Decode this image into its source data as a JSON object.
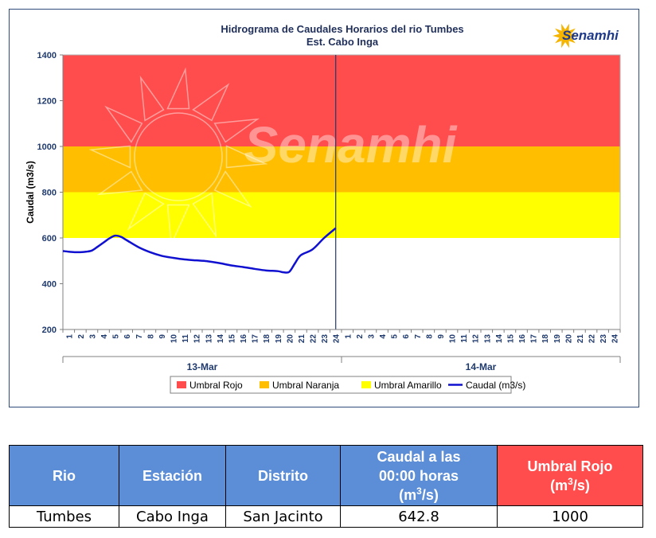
{
  "chart_data": {
    "type": "line",
    "title": "Hidrograma de Caudales Horarios del rio Tumbes",
    "subtitle": "Est. Cabo Inga",
    "ylabel": "Caudal  (m3/s)",
    "xlabel": "",
    "ylim": [
      200,
      1400
    ],
    "yticks": [
      200,
      400,
      600,
      800,
      1000,
      1200,
      1400
    ],
    "days": [
      "13-Mar",
      "14-Mar"
    ],
    "hour_ticks": [
      "1",
      "2",
      "3",
      "4",
      "5",
      "6",
      "7",
      "8",
      "9",
      "10",
      "11",
      "12",
      "13",
      "14",
      "15",
      "16",
      "17",
      "18",
      "19",
      "20",
      "21",
      "22",
      "23",
      "24"
    ],
    "bands": [
      {
        "name": "Umbral Rojo",
        "from": 1000,
        "to": 1400,
        "color": "#ff4d4d"
      },
      {
        "name": "Umbral Naranja",
        "from": 800,
        "to": 1000,
        "color": "#ffbf00"
      },
      {
        "name": "Umbral Amarillo",
        "from": 600,
        "to": 800,
        "color": "#ffff00"
      }
    ],
    "series": [
      {
        "name": "Caudal (m3/s)",
        "color": "#1010d0",
        "x": [
          0.5,
          1,
          1.5,
          2,
          2.5,
          3,
          3.5,
          4,
          4.5,
          5,
          5.5,
          6,
          7,
          8,
          9,
          10,
          11,
          12,
          13,
          14,
          15,
          16,
          17,
          18,
          19,
          19.5,
          20,
          20.5,
          21,
          22,
          23,
          24
        ],
        "values": [
          543,
          540,
          538,
          538,
          540,
          545,
          562,
          580,
          598,
          610,
          605,
          590,
          560,
          538,
          522,
          513,
          506,
          502,
          498,
          490,
          480,
          473,
          465,
          458,
          455,
          450,
          452,
          490,
          525,
          550,
          600,
          642.8
        ]
      }
    ],
    "legend": [
      "Umbral Rojo",
      "Umbral Naranja",
      "Umbral Amarillo",
      "Caudal (m3/s)"
    ],
    "legend_position": "bottom",
    "current_marker_day": "13-Mar",
    "current_marker_hour": 24,
    "watermark": "Senamhi",
    "logo": "Senamhi"
  },
  "colors": {
    "table_header": "#5b8ed6",
    "table_header_alert": "#ff4d4d"
  },
  "table": {
    "headers": {
      "rio": "Rio",
      "estacion": "Estación",
      "distrito": "Distrito",
      "caudal_line1": "Caudal a las",
      "caudal_line2": "00:00 horas",
      "caudal_unit_pre": "(m",
      "caudal_unit_sup": "3",
      "caudal_unit_post": "/s)",
      "umbral_line1": "Umbral Rojo",
      "umbral_unit_pre": "(m",
      "umbral_unit_sup": "3",
      "umbral_unit_post": "/s)"
    },
    "row": {
      "rio": "Tumbes",
      "estacion": "Cabo Inga",
      "distrito": "San Jacinto",
      "caudal": "642.8",
      "umbral": "1000"
    }
  }
}
